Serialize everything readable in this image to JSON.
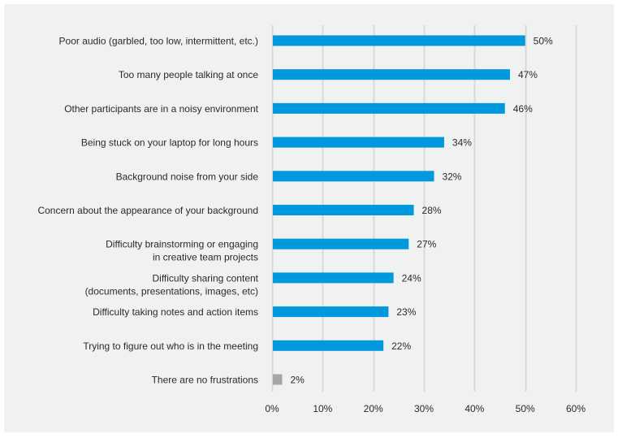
{
  "chart_data": {
    "type": "bar",
    "orientation": "horizontal",
    "title": "",
    "xlabel": "",
    "ylabel": "",
    "xlim": [
      0,
      60
    ],
    "grid": true,
    "legend": "none",
    "x_ticks": [
      "0%",
      "10%",
      "20%",
      "30%",
      "40%",
      "50%",
      "60%"
    ],
    "x_tick_values": [
      0,
      10,
      20,
      30,
      40,
      50,
      60
    ],
    "categories": [
      [
        "Poor audio (garbled, too low, intermittent, etc.)"
      ],
      [
        "Too many people talking at once"
      ],
      [
        "Other participants are in a noisy environment"
      ],
      [
        "Being stuck on your laptop for long hours"
      ],
      [
        "Background noise from your side"
      ],
      [
        "Concern about the appearance of your background"
      ],
      [
        "Difficulty brainstorming or engaging",
        "in creative team projects"
      ],
      [
        "Difficulty sharing content",
        "(documents, presentations, images, etc)"
      ],
      [
        "Difficulty taking notes and action items"
      ],
      [
        "Trying to figure out who is in the meeting"
      ],
      [
        "There are no frustrations"
      ]
    ],
    "values": [
      50,
      47,
      46,
      34,
      32,
      28,
      27,
      24,
      23,
      22,
      2
    ],
    "value_labels": [
      "50%",
      "47%",
      "46%",
      "34%",
      "32%",
      "28%",
      "27%",
      "24%",
      "23%",
      "22%",
      "2%"
    ],
    "bar_colors": [
      "#0099dd",
      "#0099dd",
      "#0099dd",
      "#0099dd",
      "#0099dd",
      "#0099dd",
      "#0099dd",
      "#0099dd",
      "#0099dd",
      "#0099dd",
      "#a6a6a6"
    ]
  },
  "colors": {
    "background": "#f0f1f1",
    "primary_bar": "#0099dd",
    "neutral_bar": "#a6a6a6",
    "gridline": "#d9d9d9",
    "text": "#2a2a2a"
  }
}
